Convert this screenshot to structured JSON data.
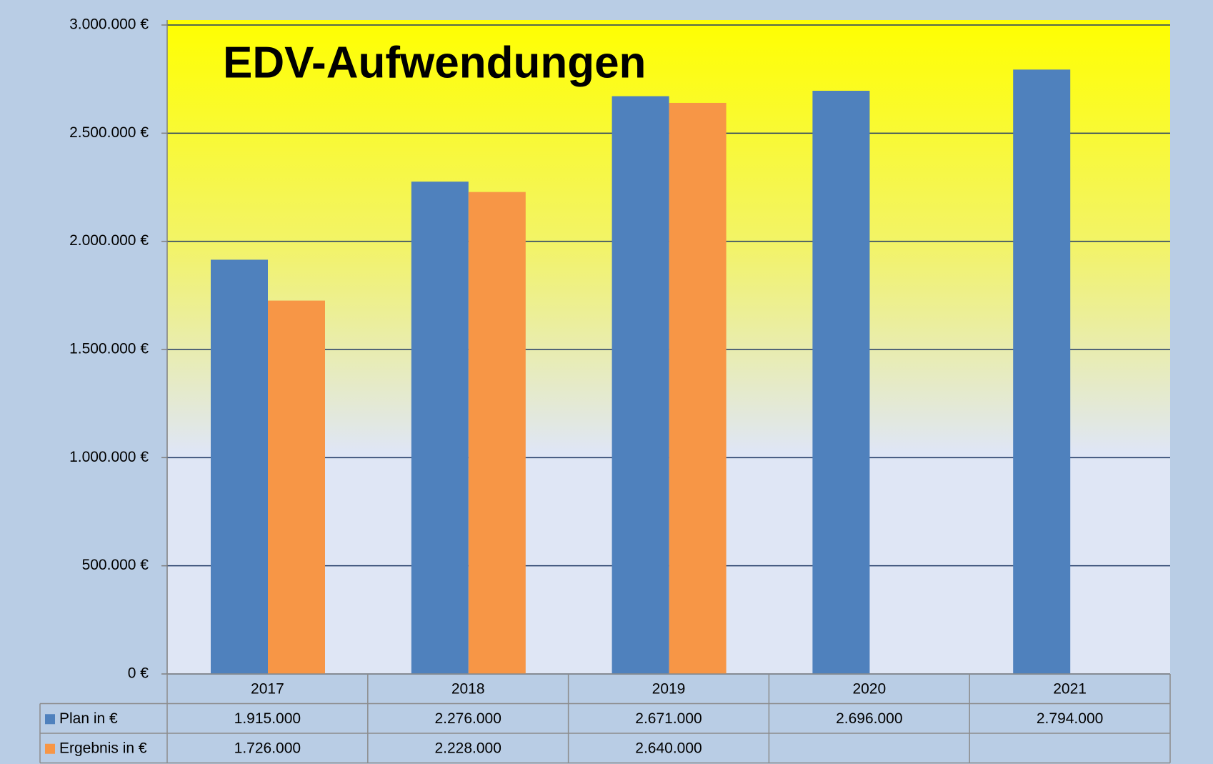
{
  "chart_data": {
    "type": "bar",
    "title": "EDV-Aufwendungen",
    "categories": [
      "2017",
      "2018",
      "2019",
      "2020",
      "2021"
    ],
    "series": [
      {
        "name": "Plan in €",
        "color": "#4f81bd",
        "values": [
          1915000,
          2276000,
          2671000,
          2696000,
          2794000
        ],
        "value_labels": [
          "1.915.000",
          "2.276.000",
          "2.671.000",
          "2.696.000",
          "2.794.000"
        ]
      },
      {
        "name": "Ergebnis in €",
        "color": "#f79646",
        "values": [
          1726000,
          2228000,
          2640000,
          null,
          null
        ],
        "value_labels": [
          "1.726.000",
          "2.228.000",
          "2.640.000",
          null,
          null
        ]
      }
    ],
    "ylim": [
      0,
      3000000
    ],
    "yticks": [
      {
        "value": 0,
        "label": "0 €"
      },
      {
        "value": 500000,
        "label": "500.000 €"
      },
      {
        "value": 1000000,
        "label": "1.000.000 €"
      },
      {
        "value": 1500000,
        "label": "1.500.000 €"
      },
      {
        "value": 2000000,
        "label": "2.000.000 €"
      },
      {
        "value": 2500000,
        "label": "2.500.000 €"
      },
      {
        "value": 3000000,
        "label": "3.000.000 €"
      }
    ],
    "grid": true
  }
}
